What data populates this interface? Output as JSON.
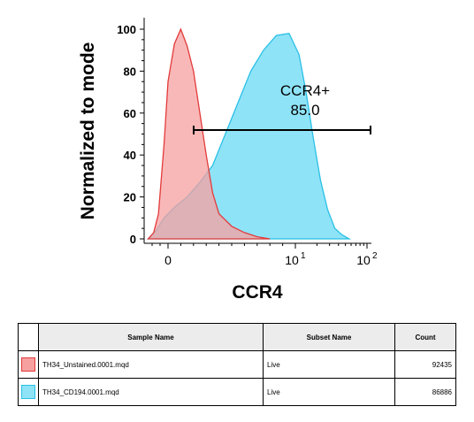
{
  "chart_data": {
    "type": "area",
    "xlabel": "CCR4",
    "ylabel": "Normalized to mode",
    "ylim": [
      0,
      100
    ],
    "yticks": [
      0,
      20,
      40,
      60,
      80,
      100
    ],
    "xticks": [
      {
        "label": "0"
      },
      {
        "label": "10",
        "exp": "1"
      },
      {
        "label": "10",
        "exp": "2"
      }
    ],
    "gate": {
      "name": "CCR4+",
      "value": "85.0"
    },
    "series": [
      {
        "color": "#e23a3a",
        "fill": "#f7a0a0",
        "x": [
          -0.25,
          -0.18,
          -0.12,
          -0.05,
          0,
          0.05,
          0.1,
          0.15,
          0.2,
          0.25,
          0.3,
          0.35,
          0.4,
          0.5,
          0.6,
          0.7,
          0.8
        ],
        "y": [
          0,
          3,
          12,
          45,
          75,
          93,
          100,
          92,
          80,
          60,
          40,
          22,
          12,
          6,
          3,
          1,
          0
        ]
      },
      {
        "color": "#29c0e6",
        "fill": "#8fe3f7",
        "x": [
          -0.25,
          -0.15,
          -0.05,
          0.05,
          0.15,
          0.25,
          0.35,
          0.45,
          0.55,
          0.65,
          0.75,
          0.85,
          0.95,
          1.05,
          1.15,
          1.25,
          1.35,
          1.45,
          1.55,
          1.65,
          1.75
        ],
        "y": [
          0,
          4,
          10,
          15,
          20,
          27,
          35,
          50,
          65,
          80,
          90,
          97,
          98,
          88,
          70,
          48,
          28,
          14,
          5,
          2,
          0
        ]
      }
    ]
  },
  "legend_table": {
    "headers": [
      "Sample Name",
      "Subset Name",
      "Count"
    ],
    "rows": [
      {
        "name": "TH34_Unstained.0001.mqd",
        "subset": "Live",
        "count": "92435",
        "color": "#e23a3a",
        "fill": "#f7a0a0"
      },
      {
        "name": "TH34_CD194.0001.mqd",
        "subset": "Live",
        "count": "86886",
        "color": "#29c0e6",
        "fill": "#8fe3f7"
      }
    ]
  }
}
